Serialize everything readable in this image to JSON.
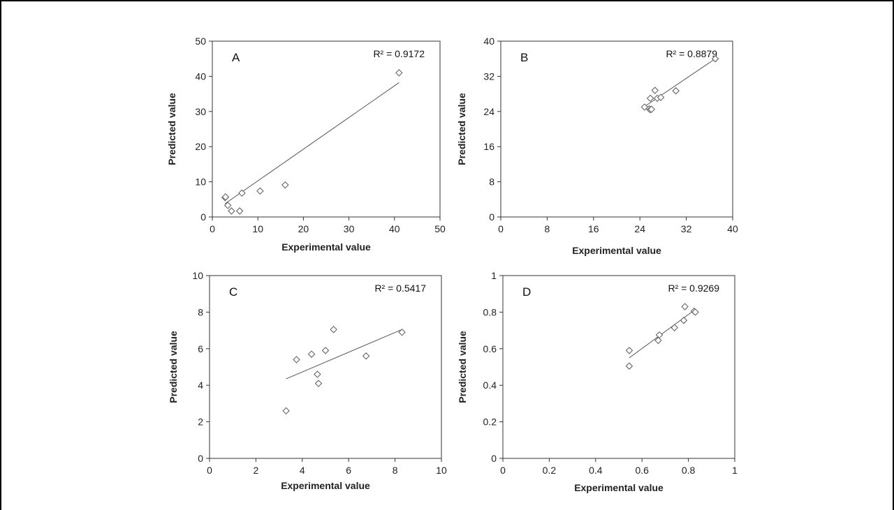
{
  "colors": {
    "marker": "#666666",
    "line": "#555555",
    "axis": "#333333",
    "frame": "#000000"
  },
  "chart_data": [
    {
      "type": "scatter",
      "panel": "A",
      "r2_label": "R² = 0.9172",
      "xlabel": "Experimental value",
      "ylabel": "Predicted value",
      "xlim": [
        0,
        50
      ],
      "ylim": [
        0,
        50
      ],
      "xticks": [
        0,
        10,
        20,
        30,
        40,
        50
      ],
      "yticks": [
        0,
        10,
        20,
        30,
        40,
        50
      ],
      "points": [
        [
          2.8,
          5.5
        ],
        [
          2.9,
          5.7
        ],
        [
          3.4,
          3.3
        ],
        [
          4.2,
          1.7
        ],
        [
          6.0,
          1.7
        ],
        [
          6.5,
          6.8
        ],
        [
          10.5,
          7.4
        ],
        [
          16.0,
          9.1
        ],
        [
          41.0,
          41.0
        ]
      ],
      "trendline": [
        [
          2.8,
          3.8
        ],
        [
          41.0,
          38.2
        ]
      ],
      "grid": false
    },
    {
      "type": "scatter",
      "panel": "B",
      "r2_label": "R² = 0.8879",
      "xlabel": "Experimental value",
      "ylabel": "Predicted value",
      "xlim": [
        0,
        40
      ],
      "ylim": [
        0,
        40
      ],
      "xticks": [
        0,
        8,
        16,
        24,
        32,
        40
      ],
      "yticks": [
        0,
        8,
        16,
        24,
        32,
        40
      ],
      "points": [
        [
          24.8,
          25.0
        ],
        [
          25.6,
          24.6
        ],
        [
          25.8,
          24.4
        ],
        [
          26.0,
          24.5
        ],
        [
          25.8,
          27.0
        ],
        [
          26.6,
          28.8
        ],
        [
          27.0,
          27.0
        ],
        [
          27.6,
          27.2
        ],
        [
          30.2,
          28.7
        ],
        [
          37.0,
          36.0
        ]
      ],
      "trendline": [
        [
          25.0,
          25.3
        ],
        [
          37.0,
          36.0
        ]
      ],
      "grid": false
    },
    {
      "type": "scatter",
      "panel": "C",
      "r2_label": "R² = 0.5417",
      "xlabel": "Experimental value",
      "ylabel": "Predicted value",
      "xlim": [
        0,
        10
      ],
      "ylim": [
        0,
        10
      ],
      "xticks": [
        0,
        2,
        4,
        6,
        8,
        10
      ],
      "yticks": [
        0,
        2,
        4,
        6,
        8,
        10
      ],
      "points": [
        [
          3.3,
          2.6
        ],
        [
          3.75,
          5.4
        ],
        [
          4.4,
          5.7
        ],
        [
          4.65,
          4.6
        ],
        [
          4.7,
          4.1
        ],
        [
          5.0,
          5.9
        ],
        [
          5.35,
          7.05
        ],
        [
          6.75,
          5.6
        ],
        [
          8.3,
          6.9
        ]
      ],
      "trendline": [
        [
          3.3,
          4.35
        ],
        [
          8.3,
          7.05
        ]
      ],
      "grid": false
    },
    {
      "type": "scatter",
      "panel": "D",
      "r2_label": "R² = 0.9269",
      "xlabel": "Experimental value",
      "ylabel": "Predicted value",
      "xlim": [
        0,
        1
      ],
      "ylim": [
        0,
        1
      ],
      "xticks": [
        "0",
        "0.2",
        "0.4",
        "0.6",
        "0.8",
        "1"
      ],
      "yticks": [
        "0",
        "0.2",
        "0.4",
        "0.6",
        "0.8",
        "1"
      ],
      "points": [
        [
          0.545,
          0.59
        ],
        [
          0.545,
          0.505
        ],
        [
          0.67,
          0.645
        ],
        [
          0.675,
          0.675
        ],
        [
          0.74,
          0.715
        ],
        [
          0.78,
          0.755
        ],
        [
          0.785,
          0.83
        ],
        [
          0.825,
          0.805
        ],
        [
          0.83,
          0.8
        ]
      ],
      "trendline": [
        [
          0.545,
          0.55
        ],
        [
          0.83,
          0.815
        ]
      ],
      "grid": false
    }
  ]
}
